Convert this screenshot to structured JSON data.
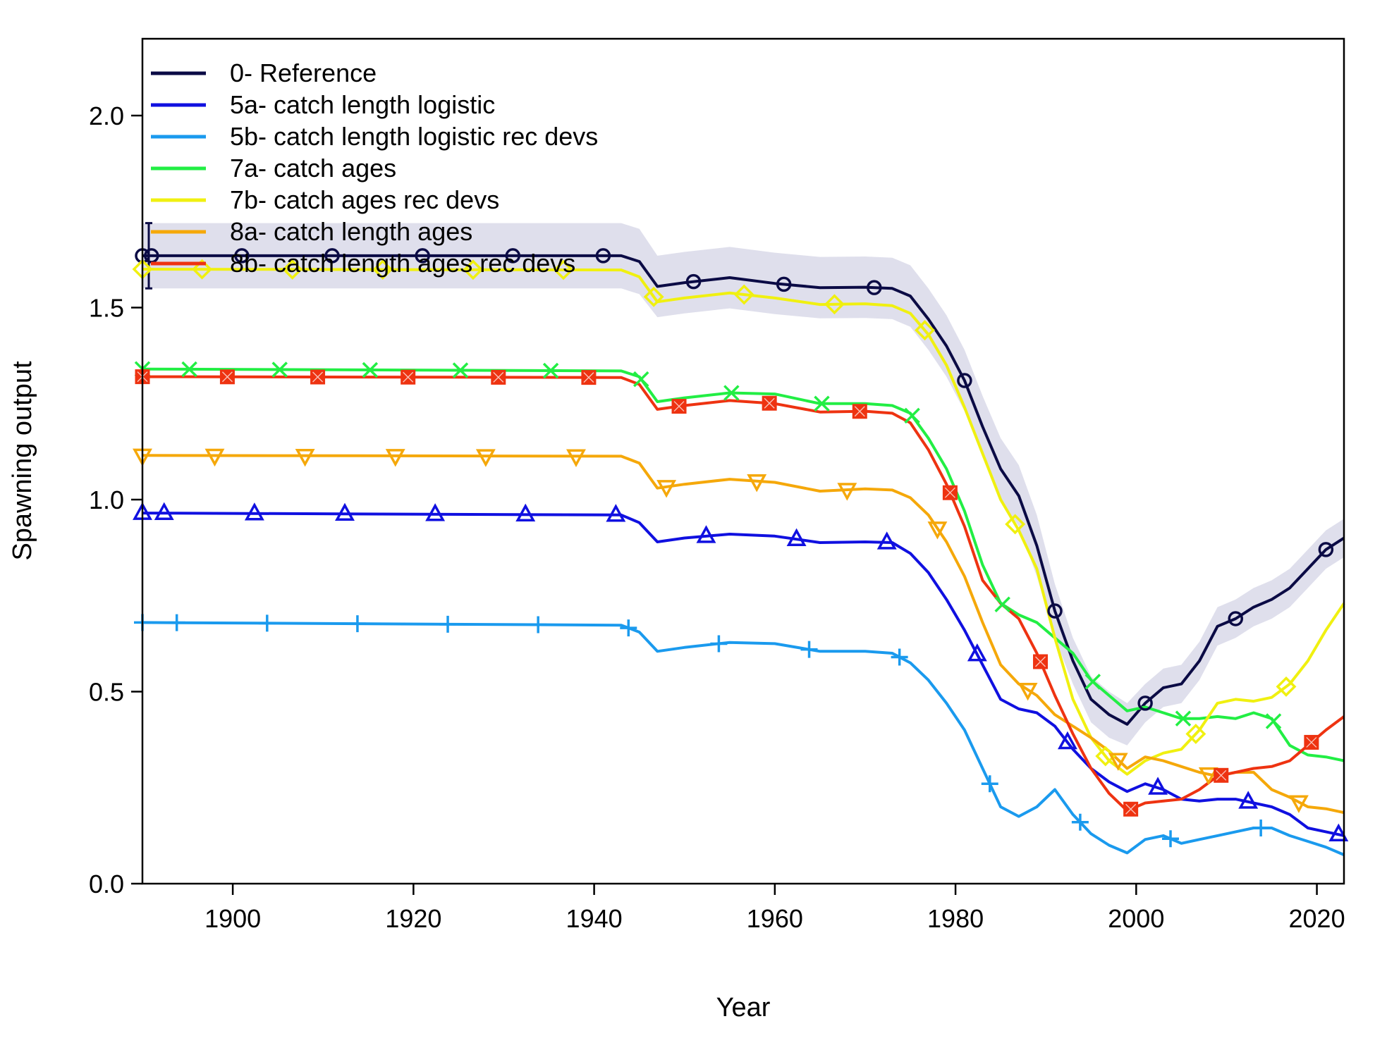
{
  "chart_data": {
    "type": "line",
    "xlabel": "Year",
    "ylabel": "Spawning output",
    "xlim": [
      1890,
      2023
    ],
    "ylim": [
      0,
      2.2
    ],
    "x_ticks": [
      1900,
      1920,
      1940,
      1960,
      1980,
      2000,
      2020
    ],
    "y_ticks": [
      0.0,
      0.5,
      1.0,
      1.5,
      2.0
    ],
    "x_tick_labels": [
      "1900",
      "1920",
      "1940",
      "1960",
      "1980",
      "2000",
      "2020"
    ],
    "y_tick_labels": [
      "0.0",
      "0.5",
      "1.0",
      "1.5",
      "2.0"
    ],
    "legend_position": "top-left",
    "grid": false,
    "x": [
      1890,
      1943,
      1945,
      1947,
      1950,
      1955,
      1960,
      1965,
      1970,
      1973,
      1975,
      1977,
      1979,
      1981,
      1983,
      1985,
      1987,
      1989,
      1991,
      1993,
      1995,
      1997,
      1999,
      2001,
      2003,
      2005,
      2007,
      2009,
      2011,
      2013,
      2015,
      2017,
      2019,
      2021,
      2023
    ],
    "series": [
      {
        "name": "0- Reference",
        "color": "#0b0b45",
        "marker": "circle",
        "values": [
          1.635,
          1.635,
          1.62,
          1.555,
          1.565,
          1.578,
          1.563,
          1.552,
          1.553,
          1.55,
          1.53,
          1.47,
          1.4,
          1.31,
          1.19,
          1.08,
          1.01,
          0.88,
          0.71,
          0.58,
          0.48,
          0.44,
          0.415,
          0.47,
          0.51,
          0.52,
          0.58,
          0.67,
          0.69,
          0.72,
          0.74,
          0.77,
          0.82,
          0.87,
          0.9
        ],
        "ci_lower": [
          1.55,
          1.55,
          1.535,
          1.475,
          1.485,
          1.498,
          1.483,
          1.472,
          1.473,
          1.47,
          1.45,
          1.39,
          1.32,
          1.23,
          1.11,
          1.0,
          0.93,
          0.8,
          0.64,
          0.52,
          0.42,
          0.38,
          0.36,
          0.42,
          0.46,
          0.47,
          0.53,
          0.62,
          0.64,
          0.67,
          0.69,
          0.72,
          0.77,
          0.82,
          0.85
        ],
        "ci_upper": [
          1.72,
          1.72,
          1.705,
          1.635,
          1.645,
          1.658,
          1.643,
          1.632,
          1.633,
          1.63,
          1.61,
          1.55,
          1.48,
          1.39,
          1.27,
          1.16,
          1.09,
          0.96,
          0.78,
          0.64,
          0.54,
          0.5,
          0.47,
          0.52,
          0.56,
          0.57,
          0.63,
          0.72,
          0.74,
          0.77,
          0.79,
          0.82,
          0.87,
          0.92,
          0.95
        ]
      },
      {
        "name": "5a- catch length logistic",
        "color": "#1010e0",
        "marker": "triangle-up",
        "values": [
          0.965,
          0.96,
          0.94,
          0.89,
          0.9,
          0.91,
          0.905,
          0.888,
          0.89,
          0.888,
          0.86,
          0.81,
          0.74,
          0.66,
          0.57,
          0.48,
          0.455,
          0.445,
          0.41,
          0.35,
          0.3,
          0.265,
          0.24,
          0.26,
          0.245,
          0.22,
          0.215,
          0.22,
          0.22,
          0.21,
          0.2,
          0.18,
          0.145,
          0.135,
          0.125
        ]
      },
      {
        "name": "5b- catch length logistic rec devs",
        "color": "#1a9aee",
        "marker": "plus",
        "values": [
          0.68,
          0.673,
          0.655,
          0.605,
          0.615,
          0.628,
          0.625,
          0.605,
          0.605,
          0.6,
          0.575,
          0.53,
          0.47,
          0.4,
          0.3,
          0.2,
          0.175,
          0.2,
          0.245,
          0.18,
          0.13,
          0.1,
          0.08,
          0.115,
          0.125,
          0.105,
          0.115,
          0.125,
          0.135,
          0.145,
          0.145,
          0.125,
          0.11,
          0.095,
          0.075
        ]
      },
      {
        "name": "7a- catch ages",
        "color": "#22ee44",
        "marker": "x",
        "values": [
          1.34,
          1.335,
          1.32,
          1.255,
          1.265,
          1.278,
          1.275,
          1.25,
          1.25,
          1.245,
          1.225,
          1.16,
          1.08,
          0.97,
          0.83,
          0.73,
          0.7,
          0.68,
          0.64,
          0.6,
          0.53,
          0.49,
          0.45,
          0.46,
          0.445,
          0.43,
          0.43,
          0.435,
          0.43,
          0.445,
          0.43,
          0.36,
          0.335,
          0.33,
          0.32
        ]
      },
      {
        "name": "7b- catch ages rec devs",
        "color": "#f0f010",
        "marker": "diamond",
        "values": [
          1.6,
          1.598,
          1.58,
          1.515,
          1.525,
          1.538,
          1.525,
          1.508,
          1.51,
          1.505,
          1.485,
          1.43,
          1.35,
          1.24,
          1.12,
          1.0,
          0.92,
          0.82,
          0.64,
          0.48,
          0.38,
          0.32,
          0.285,
          0.32,
          0.34,
          0.35,
          0.4,
          0.47,
          0.48,
          0.475,
          0.485,
          0.52,
          0.58,
          0.66,
          0.73
        ]
      },
      {
        "name": "8a- catch length ages",
        "color": "#f5a80a",
        "marker": "triangle-down",
        "values": [
          1.115,
          1.113,
          1.095,
          1.03,
          1.04,
          1.053,
          1.045,
          1.022,
          1.028,
          1.025,
          1.005,
          0.96,
          0.89,
          0.8,
          0.68,
          0.57,
          0.52,
          0.49,
          0.44,
          0.41,
          0.38,
          0.345,
          0.3,
          0.33,
          0.32,
          0.305,
          0.29,
          0.28,
          0.29,
          0.29,
          0.245,
          0.225,
          0.2,
          0.195,
          0.185
        ]
      },
      {
        "name": "8b- catch length ages rec devs",
        "color": "#ee3311",
        "marker": "square-x",
        "values": [
          1.32,
          1.318,
          1.3,
          1.235,
          1.245,
          1.258,
          1.25,
          1.228,
          1.23,
          1.225,
          1.2,
          1.13,
          1.04,
          0.93,
          0.79,
          0.73,
          0.69,
          0.6,
          0.49,
          0.39,
          0.3,
          0.235,
          0.19,
          0.21,
          0.215,
          0.22,
          0.245,
          0.28,
          0.29,
          0.3,
          0.305,
          0.32,
          0.36,
          0.4,
          0.435
        ]
      }
    ]
  }
}
